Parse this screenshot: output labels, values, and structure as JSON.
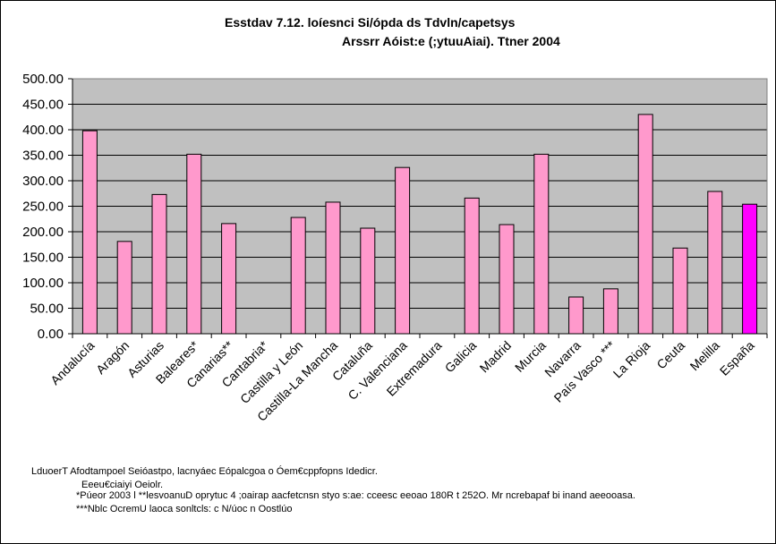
{
  "chart_data": {
    "type": "bar",
    "title_lines": [
      "Esstdav 7.12.  loíesnci Si/ópda ds Tdvln/capetsys",
      "Arssrr Aóist:e (;ytuuAiai). Ttner 2004"
    ],
    "xlabel": "",
    "ylabel": "",
    "ylim": [
      0,
      500
    ],
    "yticks": [
      "0.00",
      "50.00",
      "100.00",
      "150.00",
      "200.00",
      "250.00",
      "300.00",
      "350.00",
      "400.00",
      "450.00",
      "500.00"
    ],
    "grid": true,
    "legend": "none",
    "categories": [
      "Andalucía",
      "Aragón",
      "Asturias",
      "Baleares*",
      "Canarias**",
      "Cantabria*",
      "Castilla y León",
      "Castilla-La Mancha",
      "Cataluña",
      "C. Valenciana",
      "Extremadura",
      "Galicia",
      "Madrid",
      "Murcia",
      "Navarra",
      "País Vasco ***",
      "La Rioja",
      "Ceuta",
      "Melilla",
      "España"
    ],
    "values": [
      398,
      181,
      273,
      352,
      216,
      null,
      228,
      258,
      207,
      326,
      null,
      266,
      214,
      352,
      72,
      88,
      430,
      168,
      279,
      254
    ],
    "colors": {
      "plot_background": "#c0c0c0",
      "bar": "#ff99cc",
      "highlight_bar": "#ff00ff",
      "bar_outline": "#000000",
      "gridline": "#000000"
    },
    "highlight_category": "España"
  },
  "footnotes": [
    "LduoerT Afodtampoel Seióastpo, lacnyáec Eópalcgoa o Óem€cppfopns Idedicr.",
    "Eeeu€ciaiyi Oeiolr.",
    "*Púeor 2003 l   **lesvoanuD oprytuc 4 ;oairap aacfetcnsn styo s:ae: cceesc eeoao 180R t 252O. Mr ncrebapaf bi inand aeeooasa.",
    "***Nblc OcremU laoca sonltcls: c N/úoc n Oostlúo"
  ]
}
